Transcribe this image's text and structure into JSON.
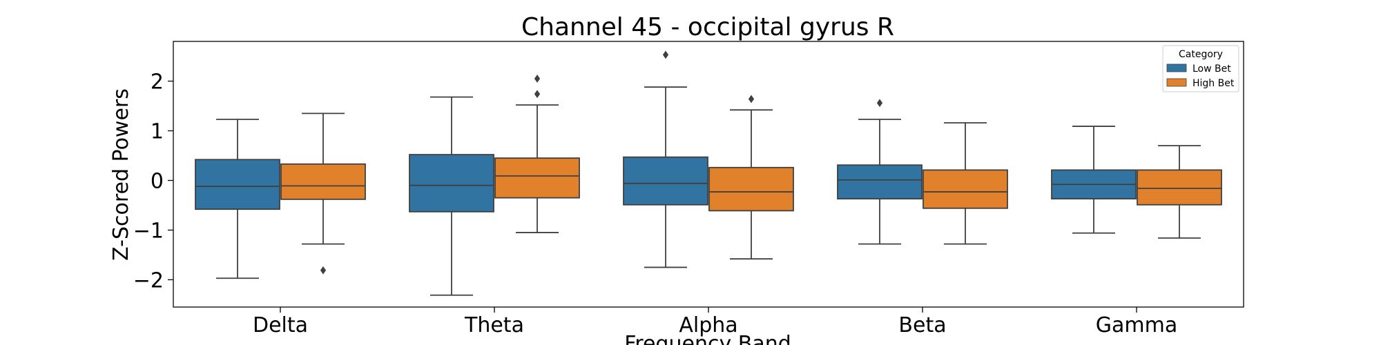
{
  "chart_data": {
    "type": "box",
    "title": "Channel 45 - occipital gyrus R",
    "xlabel": "Frequency Band",
    "ylabel": "Z-Scored Powers",
    "categories": [
      "Delta",
      "Theta",
      "Alpha",
      "Beta",
      "Gamma"
    ],
    "ylim": [
      -2.55,
      2.8
    ],
    "yticks": [
      -2,
      -1,
      0,
      1,
      2
    ],
    "ytick_labels": [
      "−2",
      "−1",
      "0",
      "1",
      "2"
    ],
    "grid": false,
    "legend": {
      "title": "Category",
      "position": "top-right",
      "entries": [
        "Low Bet",
        "High Bet"
      ]
    },
    "series": [
      {
        "name": "Low Bet",
        "color": "#3274a1",
        "boxes": [
          {
            "whisker_low": -1.97,
            "q1": -0.58,
            "median": -0.12,
            "q3": 0.42,
            "whisker_high": 1.23,
            "outliers": []
          },
          {
            "whisker_low": -2.31,
            "q1": -0.63,
            "median": -0.1,
            "q3": 0.52,
            "whisker_high": 1.68,
            "outliers": []
          },
          {
            "whisker_low": -1.75,
            "q1": -0.49,
            "median": -0.06,
            "q3": 0.47,
            "whisker_high": 1.88,
            "outliers": [
              2.53
            ]
          },
          {
            "whisker_low": -1.28,
            "q1": -0.37,
            "median": 0.01,
            "q3": 0.31,
            "whisker_high": 1.23,
            "outliers": [
              1.56
            ]
          },
          {
            "whisker_low": -1.06,
            "q1": -0.37,
            "median": -0.08,
            "q3": 0.21,
            "whisker_high": 1.09,
            "outliers": []
          }
        ]
      },
      {
        "name": "High Bet",
        "color": "#e1812c",
        "boxes": [
          {
            "whisker_low": -1.28,
            "q1": -0.38,
            "median": -0.11,
            "q3": 0.33,
            "whisker_high": 1.35,
            "outliers": [
              -1.81
            ]
          },
          {
            "whisker_low": -1.05,
            "q1": -0.35,
            "median": 0.09,
            "q3": 0.45,
            "whisker_high": 1.52,
            "outliers": [
              1.74,
              2.05
            ]
          },
          {
            "whisker_low": -1.58,
            "q1": -0.61,
            "median": -0.23,
            "q3": 0.26,
            "whisker_high": 1.42,
            "outliers": [
              1.64
            ]
          },
          {
            "whisker_low": -1.28,
            "q1": -0.56,
            "median": -0.23,
            "q3": 0.21,
            "whisker_high": 1.16,
            "outliers": []
          },
          {
            "whisker_low": -1.16,
            "q1": -0.49,
            "median": -0.16,
            "q3": 0.21,
            "whisker_high": 0.7,
            "outliers": []
          }
        ]
      }
    ]
  }
}
